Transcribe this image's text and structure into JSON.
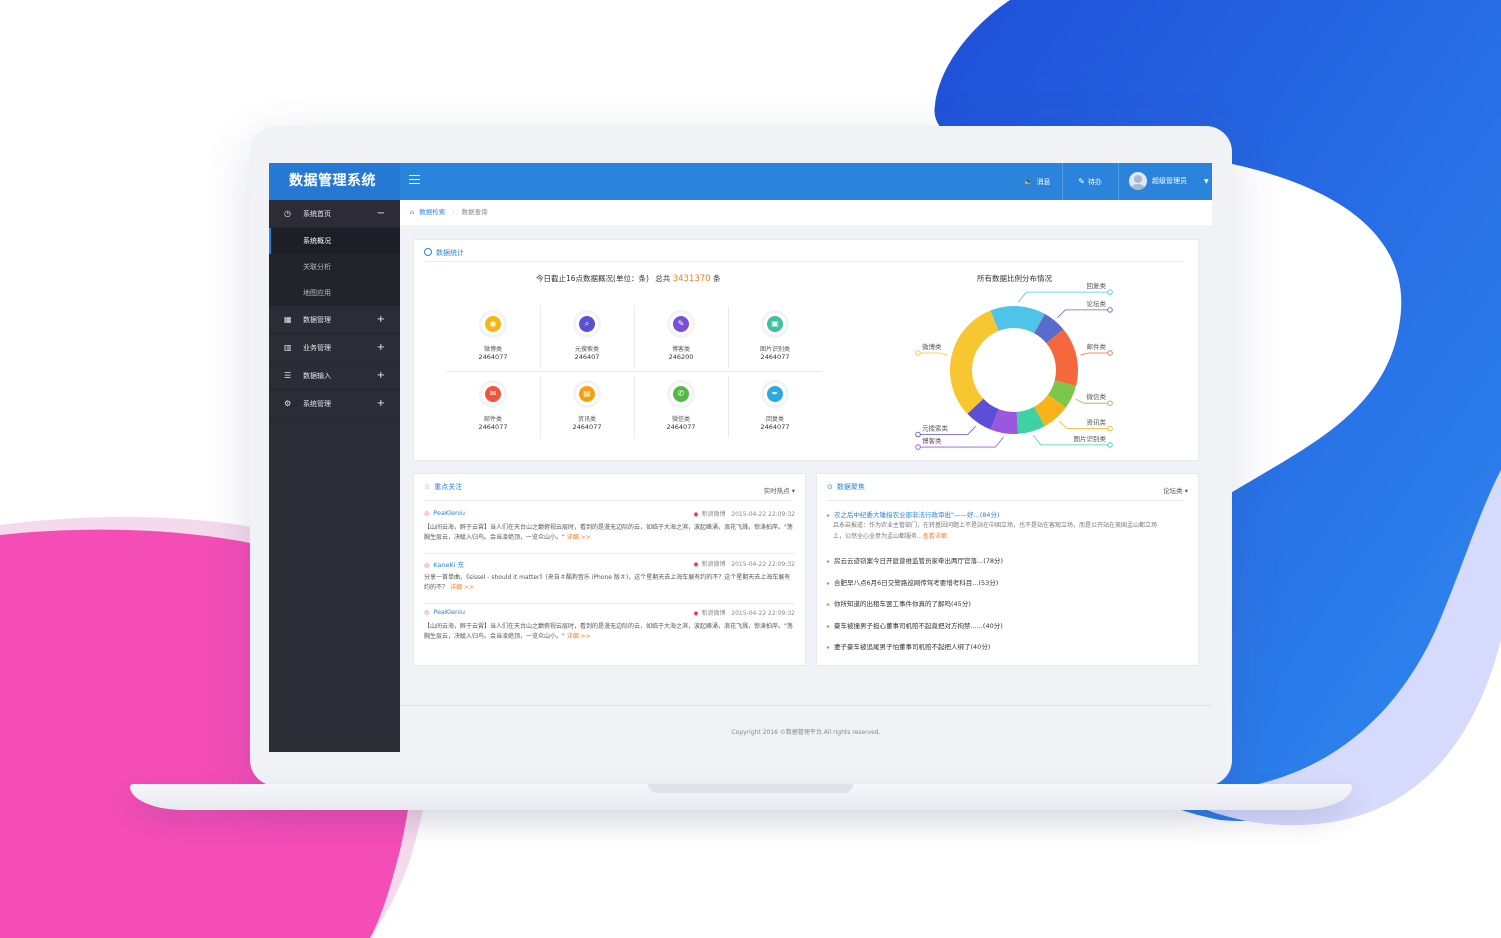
{
  "app": {
    "title": "数据管理系统"
  },
  "header": {
    "messages_label": "消息",
    "todo_label": "待办",
    "user_label": "超级管理员"
  },
  "sidebar": {
    "items": [
      {
        "label": "系统首页",
        "icon": "dashboard-icon",
        "expanded": true,
        "children": [
          "系统概况",
          "关联分析",
          "地图应用"
        ]
      },
      {
        "label": "数据管理",
        "icon": "grid-icon"
      },
      {
        "label": "业务管理",
        "icon": "bar-chart-icon"
      },
      {
        "label": "数据输入",
        "icon": "list-icon"
      },
      {
        "label": "系统管理",
        "icon": "gear-icon"
      }
    ]
  },
  "breadcrumb": {
    "home": "数据检索",
    "current": "数据查询"
  },
  "stats": {
    "title": "数据统计",
    "headline_prefix": "今日截止16点数据概况(单位：条)",
    "headline_total_prefix": "总共",
    "headline_total": "3431370",
    "headline_suffix": "条",
    "tiles": [
      {
        "label": "微博类",
        "value": "2464077",
        "color": "#f5b60d",
        "icon": "weibo-icon"
      },
      {
        "label": "元搜索类",
        "value": "246407",
        "color": "#5a4fd6",
        "icon": "search-icon"
      },
      {
        "label": "博客类",
        "value": "246200",
        "color": "#7b4fd6",
        "icon": "edit-icon"
      },
      {
        "label": "图片识别类",
        "value": "2464077",
        "color": "#3ec1a0",
        "icon": "image-icon"
      },
      {
        "label": "邮件类",
        "value": "2464077",
        "color": "#f0563d",
        "icon": "mail-icon"
      },
      {
        "label": "资讯类",
        "value": "2464077",
        "color": "#f5a10d",
        "icon": "news-icon"
      },
      {
        "label": "微信类",
        "value": "2464077",
        "color": "#55b848",
        "icon": "wechat-icon"
      },
      {
        "label": "回复类",
        "value": "2464077",
        "color": "#2fa8e0",
        "icon": "feather-icon"
      }
    ]
  },
  "distribution": {
    "title": "所有数据比例分布情况",
    "slices": [
      {
        "label": "回复类",
        "value": 14,
        "color": "#4fc3e8"
      },
      {
        "label": "论坛类",
        "value": 6,
        "color": "#5b6bc9"
      },
      {
        "label": "邮件类",
        "value": 15,
        "color": "#f5683d"
      },
      {
        "label": "微信类",
        "value": 6,
        "color": "#7cc64a"
      },
      {
        "label": "资讯类",
        "value": 7,
        "color": "#f8b31a"
      },
      {
        "label": "图片识别类",
        "value": 7,
        "color": "#3fd1a3"
      },
      {
        "label": "博客类",
        "value": 7,
        "color": "#9a57e0"
      },
      {
        "label": "元搜索类",
        "value": 7,
        "color": "#5a4fd6"
      },
      {
        "label": "微博类",
        "value": 31,
        "color": "#f8c630"
      }
    ]
  },
  "focus": {
    "title": "重点关注",
    "filter": "实时热点",
    "posts": [
      {
        "user": "PeaKleniu",
        "source": "新浪微博",
        "time": "2015-04-22 22:09:32",
        "text": "【山间云海，醉于云霄】当人们在天台山之巅俯视云层时，看到的是漫无边际的云，如临于大海之滨，波起峰涌，浪花飞溅，惊涛拍岸。\"荡胸生层云，决眦入归鸟。会当凌绝顶，一览众山小。\"",
        "more": "详细 >>"
      },
      {
        "user": "KaneKi 东",
        "source": "新浪微博",
        "time": "2015-04-22 22:09:32",
        "text": "分享一首单曲，《sissel - should it matter》(来自＃酷狗音乐 iPhone 版＃)，这个星期天去上海车展有约的不？这个星期天去上海车展有约的不？",
        "more": "详细 >>"
      },
      {
        "user": "PeaKleniu",
        "source": "新浪微博",
        "time": "2015-04-22 22:09:32",
        "text": "【山间云海，醉于云霄】当人们在天台山之巅俯视云层时，看到的是漫无边际的云，如临于大海之滨，波起峰涌，浪花飞溅，惊涛拍岸。\"荡胸生层云，决眦入归鸟。会当凌绝顶，一览众山小。\"",
        "more": "详细 >>"
      }
    ]
  },
  "aggregation": {
    "title": "数据聚焦",
    "filter": "论坛类",
    "first_headline": "农之后中纪委大锤指农业部非法行政审批\"——好...(84分)",
    "first_desc": "吕永岩报道：作为农业主管部门，在转基因问题上不是站在中国立场，也不是站在客观立场，而是公开站在美国孟山都立场上，公然全心全意为孟山都服务...",
    "first_more": "查看详细",
    "items": [
      "房云云迹窃案今日开庭曾维监管员家牵出两厅官落...(78分)",
      "合肥早八点6月6日交警路巡网传驾考要增考科目...(53分)",
      "你所知道的出租车罢工事件你真的了解吗(45分)",
      "豪车被撞男子担心董事司机赔不起竟把对方拘禁......(40分)",
      "妻子豪车被追尾男子怕董事司机赔不起把人绑了(40分)"
    ]
  },
  "footer": {
    "text": "Copyright 2016 ©数据管理平台.All rights reserved."
  }
}
